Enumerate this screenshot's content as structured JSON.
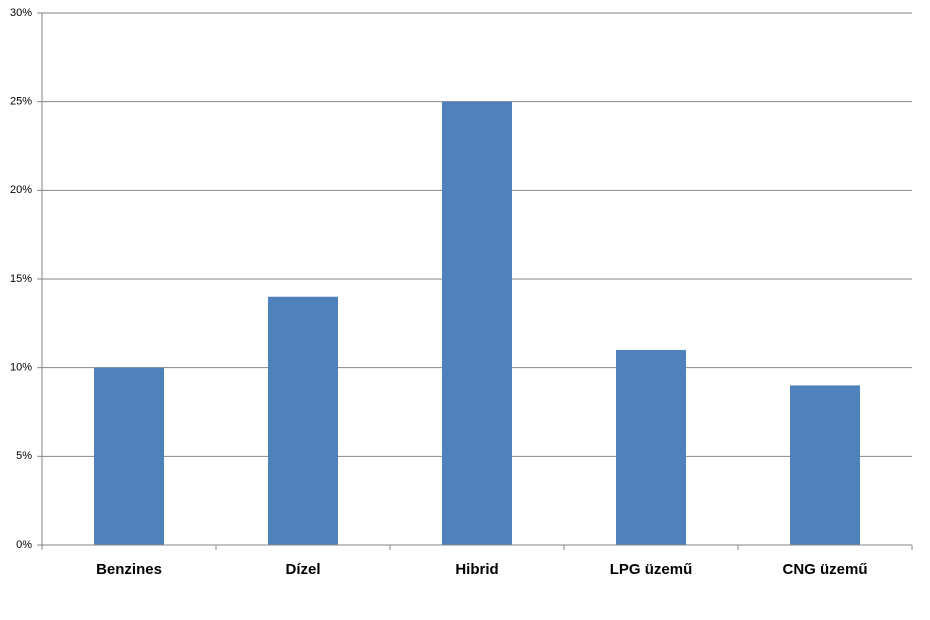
{
  "chart_data": {
    "type": "bar",
    "categories": [
      "Benzines",
      "Dízel",
      "Hibrid",
      "LPG üzemű",
      "CNG üzemű"
    ],
    "values": [
      10,
      14,
      25,
      11,
      9
    ],
    "color": "#4f81bd",
    "ylim": [
      0,
      30
    ],
    "yticks": [
      {
        "value": 0,
        "label": "0%"
      },
      {
        "value": 5,
        "label": "5%"
      },
      {
        "value": 10,
        "label": "10%"
      },
      {
        "value": 15,
        "label": "15%"
      },
      {
        "value": 20,
        "label": "20%"
      },
      {
        "value": 25,
        "label": "25%"
      },
      {
        "value": 30,
        "label": "30%"
      }
    ],
    "grid": true
  }
}
